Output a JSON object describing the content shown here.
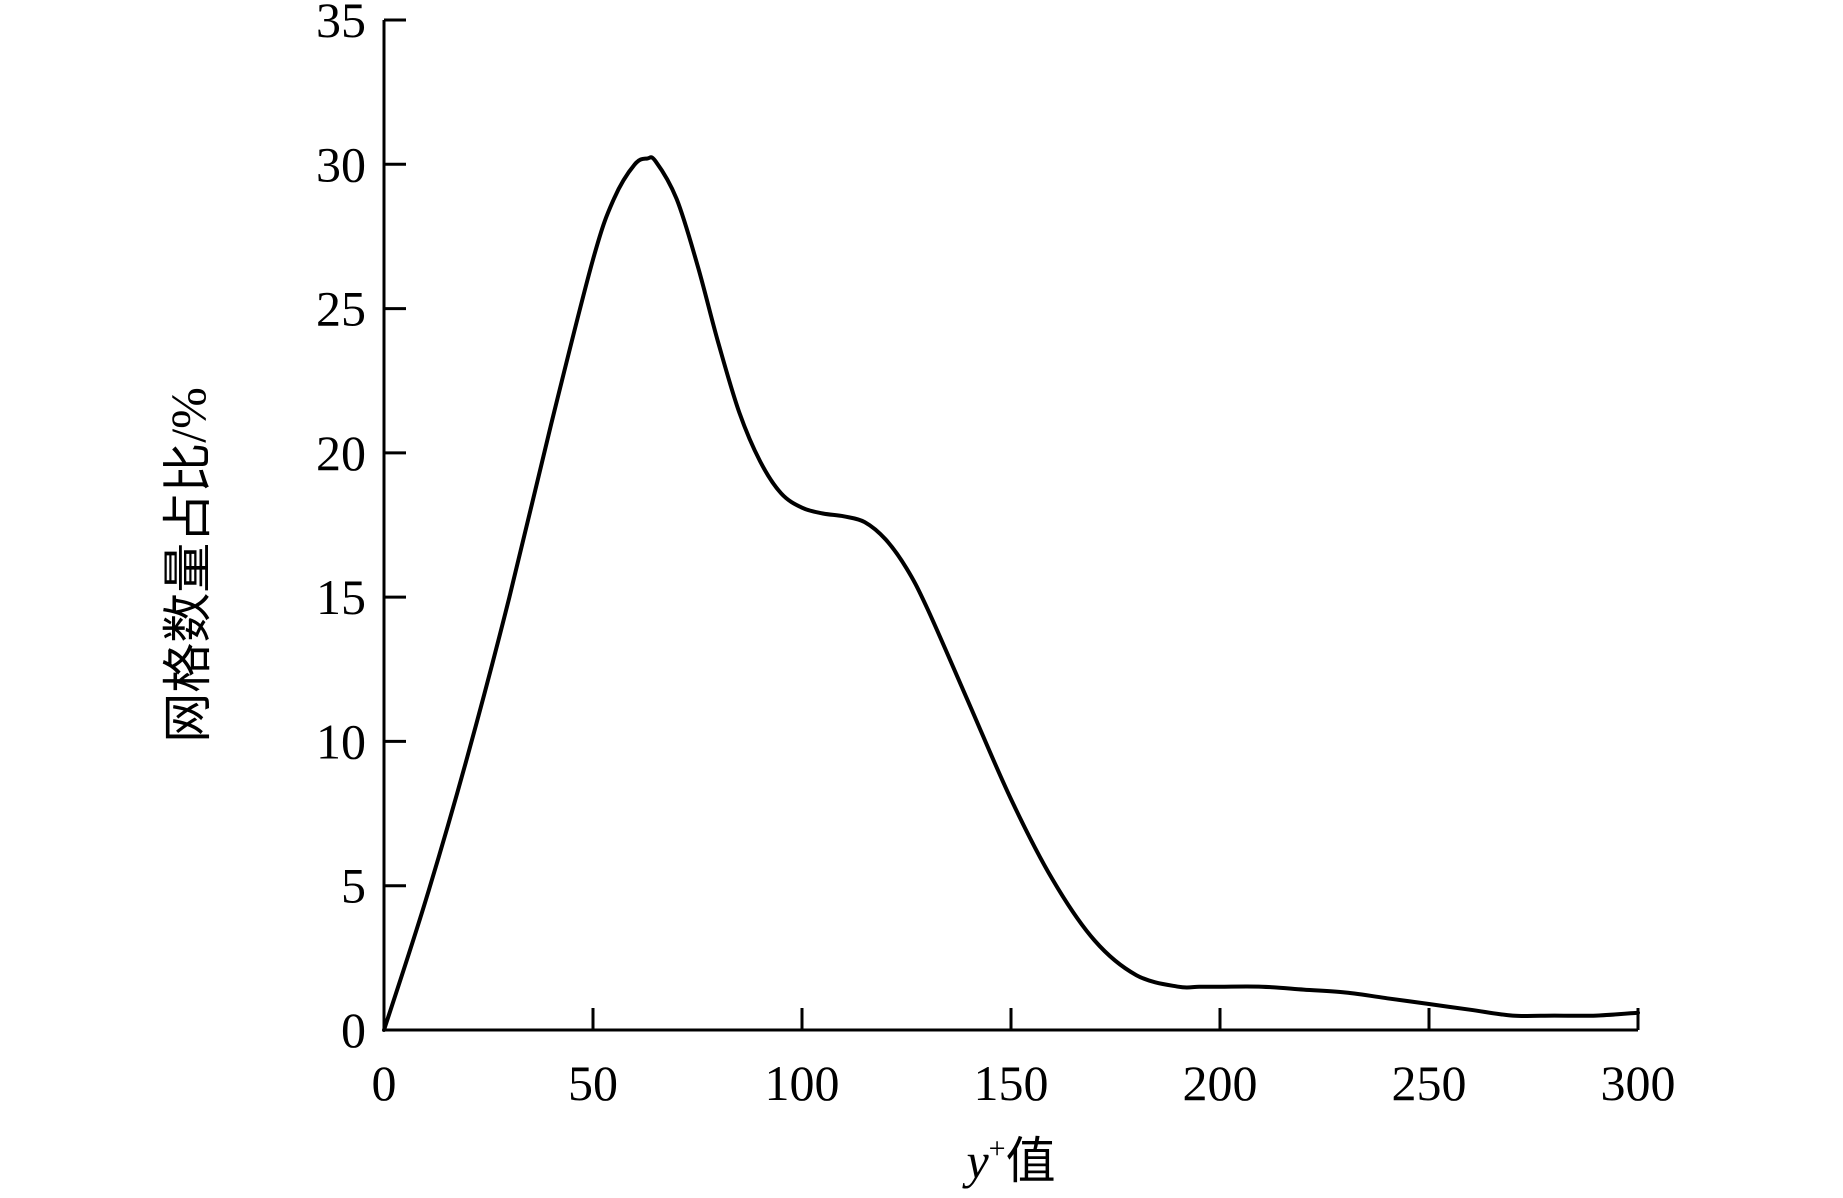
{
  "chart_data": {
    "type": "line",
    "title": "",
    "xlabel": "y⁺值",
    "xlabel_parts": {
      "var": "y",
      "sup": "+",
      "suffix": "值"
    },
    "ylabel": "网格数量占比/%",
    "xlim": [
      0,
      300
    ],
    "ylim": [
      0,
      35
    ],
    "x_ticks": [
      0,
      50,
      100,
      150,
      200,
      250,
      300
    ],
    "y_ticks": [
      0,
      5,
      10,
      15,
      20,
      25,
      30,
      35
    ],
    "grid": false,
    "legend": "none",
    "series": [
      {
        "color": "#000000",
        "x": [
          0,
          10,
          20,
          30,
          40,
          50,
          55,
          60,
          63,
          65,
          70,
          75,
          80,
          85,
          90,
          95,
          100,
          105,
          110,
          115,
          120,
          125,
          130,
          140,
          150,
          160,
          170,
          180,
          190,
          195,
          200,
          210,
          220,
          230,
          240,
          250,
          260,
          270,
          280,
          290,
          300
        ],
        "y": [
          0,
          4.5,
          9.5,
          15.0,
          21.0,
          26.7,
          28.8,
          30.0,
          30.2,
          30.1,
          28.8,
          26.5,
          23.8,
          21.4,
          19.7,
          18.6,
          18.1,
          17.9,
          17.8,
          17.6,
          17.0,
          16.0,
          14.6,
          11.3,
          8.0,
          5.2,
          3.1,
          1.9,
          1.5,
          1.5,
          1.5,
          1.5,
          1.4,
          1.3,
          1.1,
          0.9,
          0.7,
          0.5,
          0.5,
          0.5,
          0.6
        ]
      }
    ]
  }
}
